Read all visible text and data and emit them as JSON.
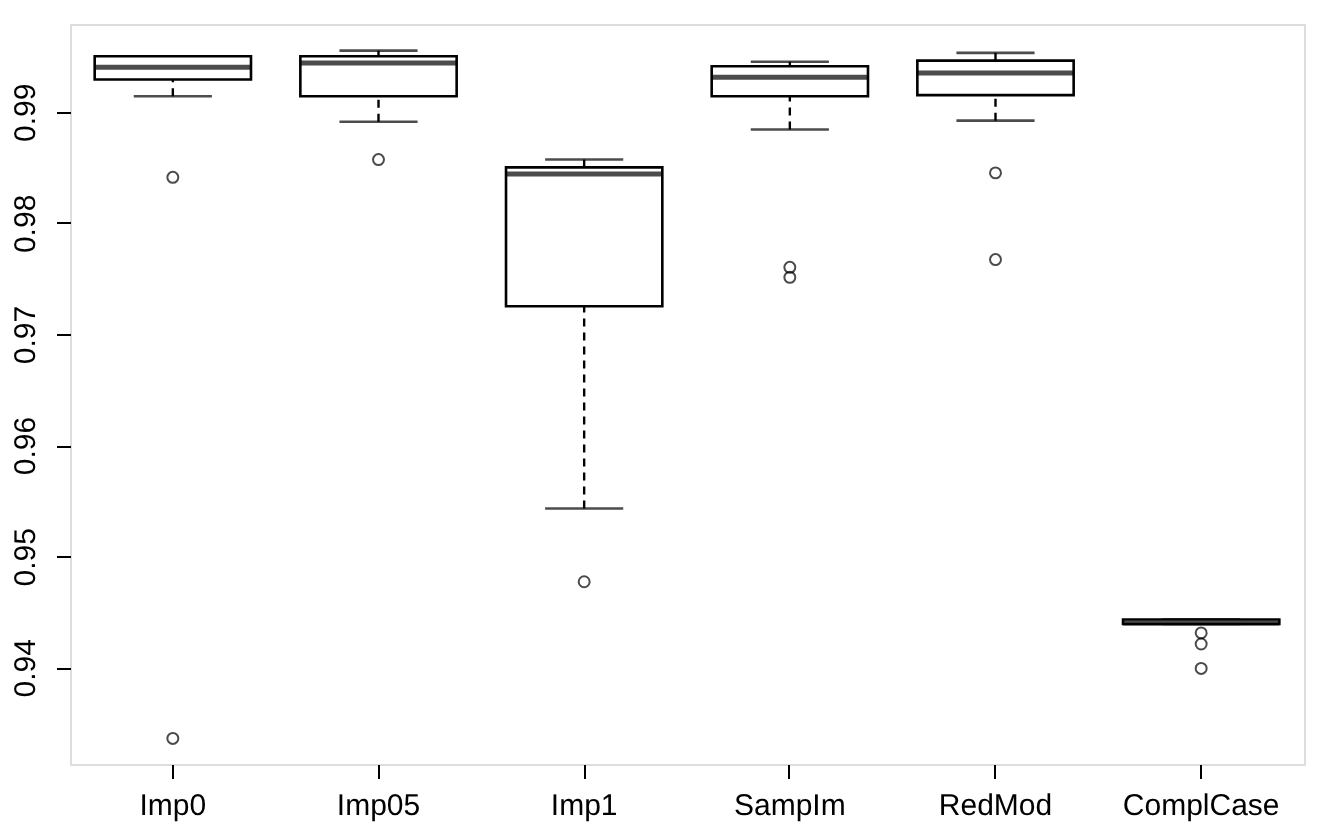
{
  "chart_data": {
    "type": "box",
    "categories": [
      "Imp0",
      "Imp05",
      "Imp1",
      "SampIm",
      "RedMod",
      "ComplCase"
    ],
    "boxes": [
      {
        "low": 0.9914,
        "q1": 0.9929,
        "median": 0.994,
        "q3": 0.995,
        "high": 0.995,
        "outliers": [
          0.9841,
          0.9336
        ]
      },
      {
        "low": 0.9891,
        "q1": 0.9914,
        "median": 0.9944,
        "q3": 0.995,
        "high": 0.9955,
        "outliers": [
          0.9857
        ]
      },
      {
        "low": 0.9543,
        "q1": 0.9725,
        "median": 0.9844,
        "q3": 0.985,
        "high": 0.9857,
        "outliers": [
          0.9477
        ]
      },
      {
        "low": 0.9884,
        "q1": 0.9914,
        "median": 0.9931,
        "q3": 0.9941,
        "high": 0.9945,
        "outliers": [
          0.976,
          0.9751
        ]
      },
      {
        "low": 0.9892,
        "q1": 0.9915,
        "median": 0.9935,
        "q3": 0.9946,
        "high": 0.9953,
        "outliers": [
          0.9845,
          0.9767
        ]
      },
      {
        "low": 0.9439,
        "q1": 0.9439,
        "median": 0.944,
        "q3": 0.9443,
        "high": 0.9443,
        "outliers": [
          0.9431,
          0.9421,
          0.9399
        ]
      }
    ],
    "ylim": [
      0.9313,
      0.9979
    ],
    "yticks": [
      0.94,
      0.95,
      0.96,
      0.97,
      0.98,
      0.99
    ],
    "grid": false
  }
}
